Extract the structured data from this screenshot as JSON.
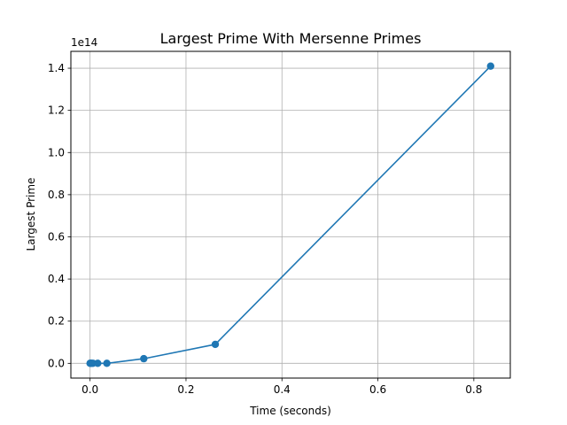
{
  "chart_data": {
    "type": "line",
    "title": "Largest Prime With Mersenne Primes",
    "xlabel": "Time (seconds)",
    "ylabel": "Largest Prime",
    "y_offset_label": "1e14",
    "xlim": [
      -0.04,
      0.876
    ],
    "ylim": [
      -0.07,
      1.48
    ],
    "y_scale_note": "y values in units of 1e14",
    "grid": true,
    "x_ticks": [
      0.0,
      0.2,
      0.4,
      0.6,
      0.8
    ],
    "x_tick_labels": [
      "0.0",
      "0.2",
      "0.4",
      "0.6",
      "0.8"
    ],
    "y_ticks": [
      0.0,
      0.2,
      0.4,
      0.6,
      0.8,
      1.0,
      1.2,
      1.4
    ],
    "y_tick_labels": [
      "0.0",
      "0.2",
      "0.4",
      "0.6",
      "0.8",
      "1.0",
      "1.2",
      "1.4"
    ],
    "series": [
      {
        "color": "#1f77b4",
        "marker": "circle",
        "x": [
          0.0,
          0.001,
          0.003,
          0.006,
          0.016,
          0.035,
          0.112,
          0.261,
          0.835
        ],
        "y": [
          0.0,
          0.0,
          0.0,
          0.0,
          0.0,
          0.0,
          0.022,
          0.09,
          1.41
        ]
      }
    ]
  }
}
